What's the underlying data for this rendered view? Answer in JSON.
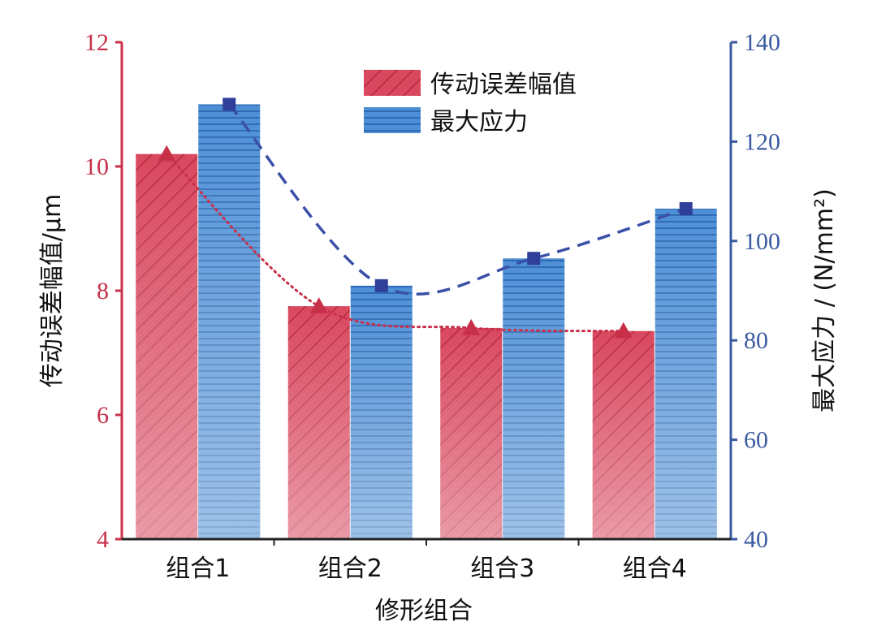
{
  "chart_data": {
    "type": "bar",
    "xlabel": "修形组合",
    "categories": [
      "组合1",
      "组合2",
      "组合3",
      "组合4"
    ],
    "y_left": {
      "label": "传动误差幅值/μm",
      "lim": [
        4,
        12
      ],
      "ticks": [
        4,
        6,
        8,
        10,
        12
      ],
      "color": "#c8304a"
    },
    "y_right": {
      "label": "最大应力 / (N/mm²)",
      "lim": [
        40,
        140
      ],
      "ticks": [
        40,
        60,
        80,
        100,
        120,
        140
      ],
      "color": "#3b5aa0"
    },
    "series": [
      {
        "name": "传动误差幅值",
        "axis": "left",
        "values": [
          10.2,
          7.75,
          7.4,
          7.35
        ],
        "color": "#d9485f"
      },
      {
        "name": "最大应力",
        "axis": "right",
        "values": [
          127.5,
          91,
          96.5,
          106.5
        ],
        "color": "#3d7fc8"
      }
    ],
    "trend_lines": [
      {
        "series": "传动误差幅值",
        "style": "dotted",
        "marker": "triangle",
        "color": "#c8304a"
      },
      {
        "series": "最大应力",
        "style": "dashed",
        "marker": "square",
        "color": "#3a4fa8"
      }
    ],
    "legend": "top-center",
    "grid": false
  }
}
